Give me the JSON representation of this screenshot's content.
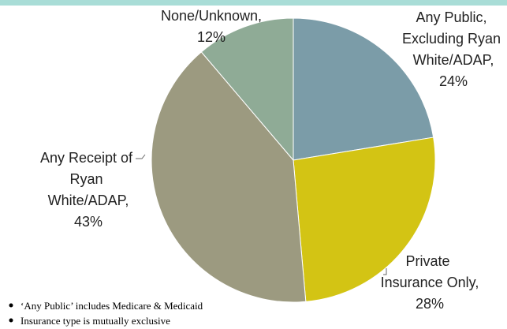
{
  "chart_data": {
    "type": "pie",
    "categories": [
      "Any Public, Excluding Ryan White/ADAP,",
      "Private Insurance Only,",
      "Any Receipt of Ryan White/ADAP,",
      "None/Unknown,"
    ],
    "values": [
      24,
      28,
      43,
      12
    ],
    "value_labels": [
      "24%",
      "28%",
      "43%",
      "12%"
    ],
    "colors": [
      "#7b9ca8",
      "#d3c414",
      "#9c9a80",
      "#8fab96"
    ],
    "notes": [
      "‘Any Public’ includes Medicare & Medicaid",
      "Insurance type is mutually exclusive"
    ]
  }
}
